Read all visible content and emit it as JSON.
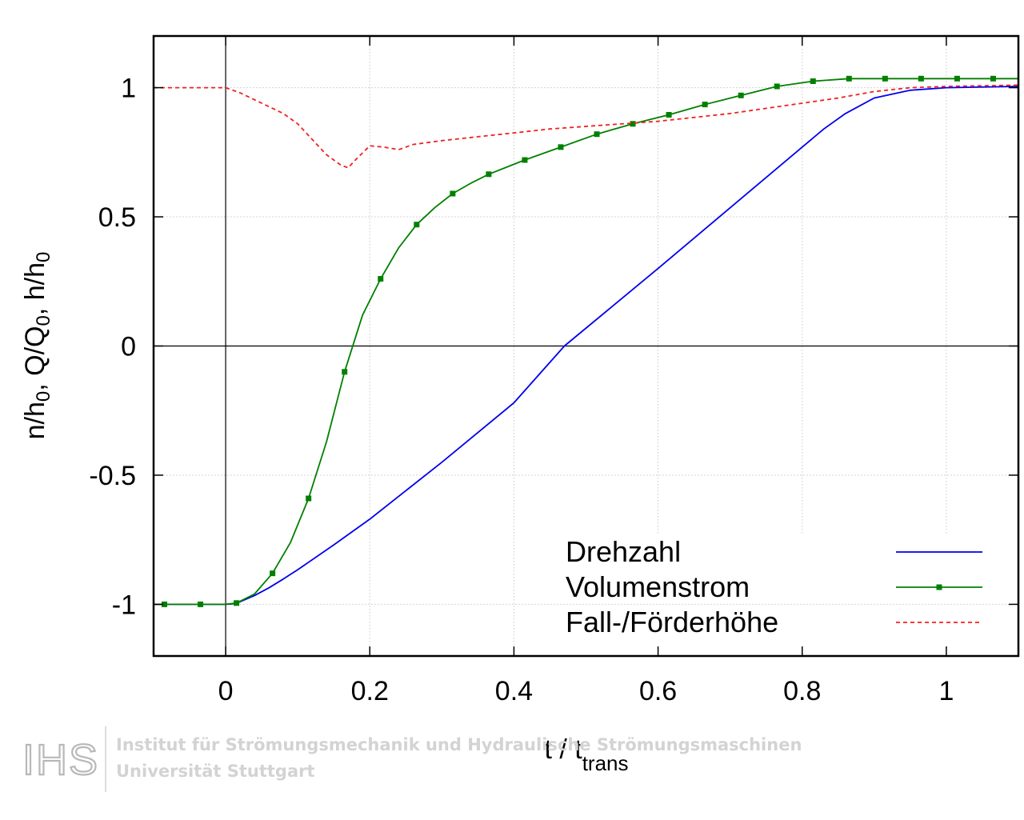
{
  "chart_data": {
    "type": "line",
    "xlabel": "t / t",
    "xlabel_sub": "trans",
    "ylabel_parts": [
      {
        "t": "n/h",
        "sub": false
      },
      {
        "t": "0",
        "sub": true
      },
      {
        "t": ", Q/Q",
        "sub": false
      },
      {
        "t": "0",
        "sub": true
      },
      {
        "t": ", h/h",
        "sub": false
      },
      {
        "t": "0",
        "sub": true
      }
    ],
    "xlim": [
      -0.1,
      1.1
    ],
    "ylim": [
      -1.2,
      1.2
    ],
    "xticks": [
      0,
      0.2,
      0.4,
      0.6,
      0.8,
      1
    ],
    "xtick_labels": [
      "0",
      "0.2",
      "0.4",
      "0.6",
      "0.8",
      "1"
    ],
    "yticks": [
      -1,
      -0.5,
      0,
      0.5,
      1
    ],
    "ytick_labels": [
      "-1",
      "-0.5",
      "0",
      "0.5",
      "1"
    ],
    "grid": true,
    "zero_lines": true,
    "legend_position": "bottom-right",
    "series": [
      {
        "name": "Drehzahl",
        "color": "#0000ee",
        "style": "solid",
        "markers": false,
        "points": [
          [
            -0.1,
            -1
          ],
          [
            0,
            -1
          ],
          [
            0.01,
            -0.998
          ],
          [
            0.02,
            -0.99
          ],
          [
            0.04,
            -0.966
          ],
          [
            0.06,
            -0.936
          ],
          [
            0.08,
            -0.902
          ],
          [
            0.1,
            -0.866
          ],
          [
            0.15,
            -0.77
          ],
          [
            0.2,
            -0.67
          ],
          [
            0.3,
            -0.45
          ],
          [
            0.4,
            -0.22
          ],
          [
            0.47,
            0
          ],
          [
            0.6,
            0.3
          ],
          [
            0.7,
            0.535
          ],
          [
            0.8,
            0.77
          ],
          [
            0.83,
            0.84
          ],
          [
            0.86,
            0.9
          ],
          [
            0.9,
            0.96
          ],
          [
            0.95,
            0.99
          ],
          [
            1.0,
            1.0
          ],
          [
            1.1,
            1.005
          ]
        ]
      },
      {
        "name": "Volumenstrom",
        "color": "#008000",
        "style": "solid",
        "markers": true,
        "points": [
          [
            -0.1,
            -1
          ],
          [
            -0.035,
            -1
          ],
          [
            0,
            -1
          ],
          [
            0.015,
            -0.995
          ],
          [
            0.04,
            -0.96
          ],
          [
            0.065,
            -0.88
          ],
          [
            0.09,
            -0.76
          ],
          [
            0.115,
            -0.59
          ],
          [
            0.14,
            -0.37
          ],
          [
            0.165,
            -0.1
          ],
          [
            0.19,
            0.12
          ],
          [
            0.215,
            0.26
          ],
          [
            0.24,
            0.38
          ],
          [
            0.265,
            0.47
          ],
          [
            0.29,
            0.535
          ],
          [
            0.315,
            0.59
          ],
          [
            0.34,
            0.63
          ],
          [
            0.365,
            0.665
          ],
          [
            0.415,
            0.72
          ],
          [
            0.465,
            0.77
          ],
          [
            0.515,
            0.82
          ],
          [
            0.565,
            0.86
          ],
          [
            0.615,
            0.895
          ],
          [
            0.665,
            0.935
          ],
          [
            0.715,
            0.97
          ],
          [
            0.765,
            1.005
          ],
          [
            0.815,
            1.025
          ],
          [
            0.865,
            1.035
          ],
          [
            0.915,
            1.035
          ],
          [
            0.965,
            1.035
          ],
          [
            1.015,
            1.035
          ],
          [
            1.065,
            1.035
          ],
          [
            1.1,
            1.035
          ]
        ],
        "marker_x": [
          -0.085,
          -0.035,
          0.015,
          0.065,
          0.115,
          0.165,
          0.215,
          0.265,
          0.315,
          0.365,
          0.415,
          0.465,
          0.515,
          0.565,
          0.615,
          0.665,
          0.715,
          0.765,
          0.815,
          0.865,
          0.915,
          0.965,
          1.015,
          1.065
        ]
      },
      {
        "name": "Fall-/Förderhöhe",
        "color": "#ee2222",
        "style": "dashed",
        "markers": false,
        "points": [
          [
            -0.1,
            1
          ],
          [
            0,
            1
          ],
          [
            0.02,
            0.98
          ],
          [
            0.05,
            0.94
          ],
          [
            0.08,
            0.9
          ],
          [
            0.1,
            0.86
          ],
          [
            0.12,
            0.8
          ],
          [
            0.14,
            0.74
          ],
          [
            0.16,
            0.7
          ],
          [
            0.17,
            0.69
          ],
          [
            0.18,
            0.72
          ],
          [
            0.2,
            0.775
          ],
          [
            0.22,
            0.77
          ],
          [
            0.24,
            0.76
          ],
          [
            0.26,
            0.78
          ],
          [
            0.3,
            0.795
          ],
          [
            0.35,
            0.81
          ],
          [
            0.4,
            0.825
          ],
          [
            0.45,
            0.84
          ],
          [
            0.5,
            0.85
          ],
          [
            0.6,
            0.87
          ],
          [
            0.7,
            0.9
          ],
          [
            0.75,
            0.92
          ],
          [
            0.8,
            0.94
          ],
          [
            0.85,
            0.96
          ],
          [
            0.9,
            0.985
          ],
          [
            0.95,
            1.0
          ],
          [
            1.0,
            1.005
          ],
          [
            1.1,
            1.01
          ]
        ]
      }
    ]
  },
  "logo": {
    "letters": "IHS",
    "line1": "Institut für Strömungsmechanik und Hydraulische Strömungsmaschinen",
    "line2": "Universität Stuttgart"
  }
}
